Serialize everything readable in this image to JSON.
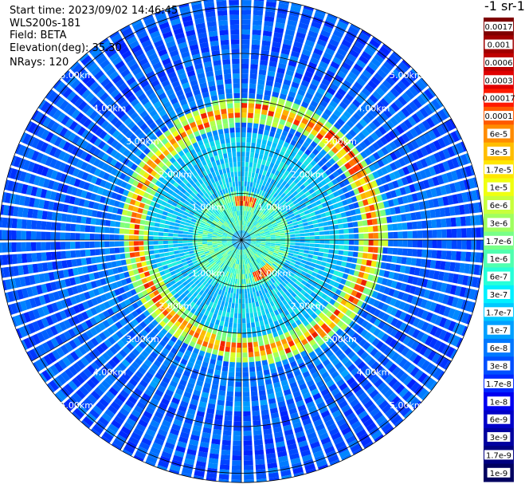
{
  "header": {
    "start_time": "Start time: 2023/09/02 14:46:45",
    "instrument": "WLS200s-181",
    "field": "Field: BETA",
    "elevation": "Elevation(deg): 35.30",
    "nrays": "NRays: 120"
  },
  "colorbar": {
    "title": "-1 sr-1",
    "labels": [
      "0.0017",
      "0.001",
      "0.0006",
      "0.0003",
      "0.00017",
      "0.0001",
      "6e-5",
      "3e-5",
      "1.7e-5",
      "1e-5",
      "6e-6",
      "3e-6",
      "1.7e-6",
      "1e-6",
      "6e-7",
      "3e-7",
      "1.7e-7",
      "1e-7",
      "6e-8",
      "3e-8",
      "1.7e-8",
      "1e-8",
      "6e-9",
      "3e-9",
      "1.7e-9",
      "1e-9"
    ],
    "colors": [
      "#7f0000",
      "#a00000",
      "#c00000",
      "#e00000",
      "#ff1a00",
      "#ff5a00",
      "#ff8c00",
      "#ffbe00",
      "#ffe600",
      "#f0ff10",
      "#c8ff3c",
      "#a0ff60",
      "#78ff88",
      "#50ffb0",
      "#28ffd8",
      "#00f0ff",
      "#00c8ff",
      "#00a0ff",
      "#0078ff",
      "#0050ff",
      "#0028ff",
      "#0000f0",
      "#0000c8",
      "#0000a0",
      "#000080",
      "#000060"
    ]
  },
  "chart_data": {
    "type": "heatmap",
    "projection": "polar (PPI scan)",
    "field": "BETA",
    "elevation_deg": 35.3,
    "n_rays": 120,
    "range_ring_labels": [
      "1.00km",
      "2.00km",
      "3.00km",
      "4.00km",
      "5.00km"
    ],
    "range_rings_km": [
      1,
      2,
      3,
      4,
      5
    ],
    "spoke_angles_deg": [
      0,
      30,
      60,
      90,
      120,
      150,
      180,
      210,
      240,
      270,
      300,
      330
    ],
    "max_range_km": 5.2,
    "features": [
      {
        "name": "elevated layer ring",
        "range_km": [
          2.4,
          3.3
        ],
        "level": "3e-5 to 1e-4"
      },
      {
        "name": "near-field return",
        "range_km": [
          0.3,
          1.0
        ],
        "level": "1e-6 to 1e-5"
      },
      {
        "name": "background",
        "level": "1e-8 to 1e-7"
      }
    ],
    "grid": true
  }
}
